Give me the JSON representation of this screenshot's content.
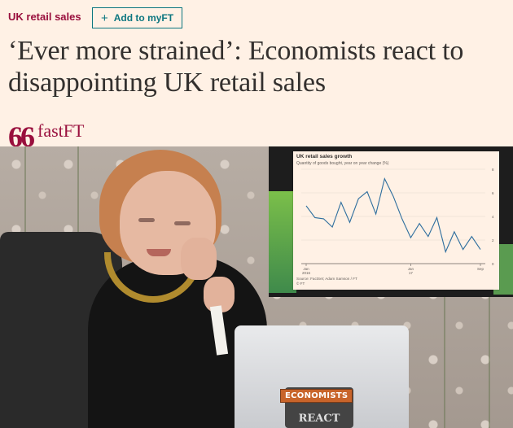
{
  "header": {
    "topic": "UK retail sales",
    "myft_button": {
      "icon": "plus-icon",
      "plus": "+",
      "label": "Add to myFT"
    },
    "headline": "‘Ever more strained’: Economists react to disappointing UK retail sales",
    "brand": {
      "quote_mark": "66",
      "label": "fastFT"
    }
  },
  "colors": {
    "background": "#fff1e5",
    "claret": "#990f3d",
    "teal": "#0d7680",
    "text": "#33302e",
    "chart_line": "#2e6e9e"
  },
  "image": {
    "laptop_sticker": "ECONOMISTS",
    "laptop_logo": "REACT"
  },
  "chart_data": {
    "type": "line",
    "title": "UK retail sales growth",
    "subtitle": "Quantity of goods bought, year on year change (%)",
    "source": "Source: FactSet; Adam Samson / FT",
    "credit": "© FT",
    "x_tick_labels": [
      {
        "label": "Jan",
        "sub": "2016"
      },
      {
        "label": "Jan",
        "sub": "17"
      },
      {
        "label": "Sep",
        "sub": ""
      }
    ],
    "y_ticks": [
      0,
      2,
      4,
      6,
      8
    ],
    "ylim": [
      0,
      8
    ],
    "grid": true,
    "series": [
      {
        "values": [
          4.9,
          3.9,
          3.8,
          3.1,
          5.2,
          3.5,
          5.5,
          6.1,
          4.2,
          7.2,
          5.7,
          3.8,
          2.2,
          3.4,
          2.3,
          3.9,
          1.0,
          2.7,
          1.2,
          2.3,
          1.2
        ]
      }
    ]
  }
}
